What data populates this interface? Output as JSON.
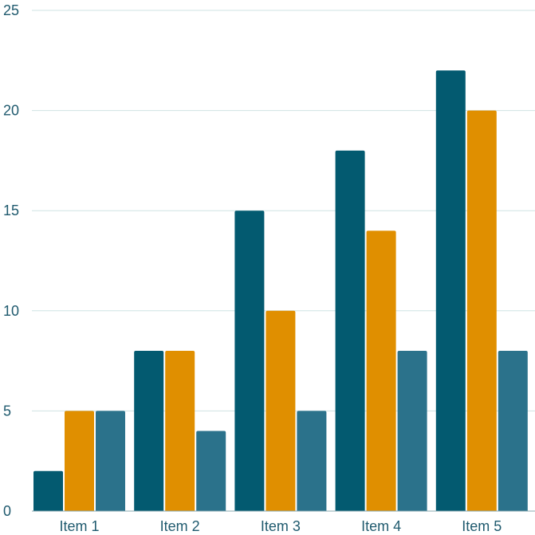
{
  "chart_data": {
    "type": "bar",
    "title": "",
    "xlabel": "",
    "ylabel": "",
    "categories": [
      "Item 1",
      "Item 2",
      "Item 3",
      "Item 4",
      "Item 5"
    ],
    "series": [
      {
        "values": [
          2,
          8,
          15,
          18,
          22
        ],
        "color": "#035a70"
      },
      {
        "values": [
          5,
          8,
          10,
          14,
          20
        ],
        "color": "#e08f00"
      },
      {
        "values": [
          5,
          4,
          5,
          8,
          8
        ],
        "color": "#2b728b"
      }
    ],
    "ylim": [
      0,
      25
    ],
    "y_ticks": [
      0,
      5,
      10,
      15,
      20,
      25
    ],
    "grid": true,
    "legend": "none"
  }
}
